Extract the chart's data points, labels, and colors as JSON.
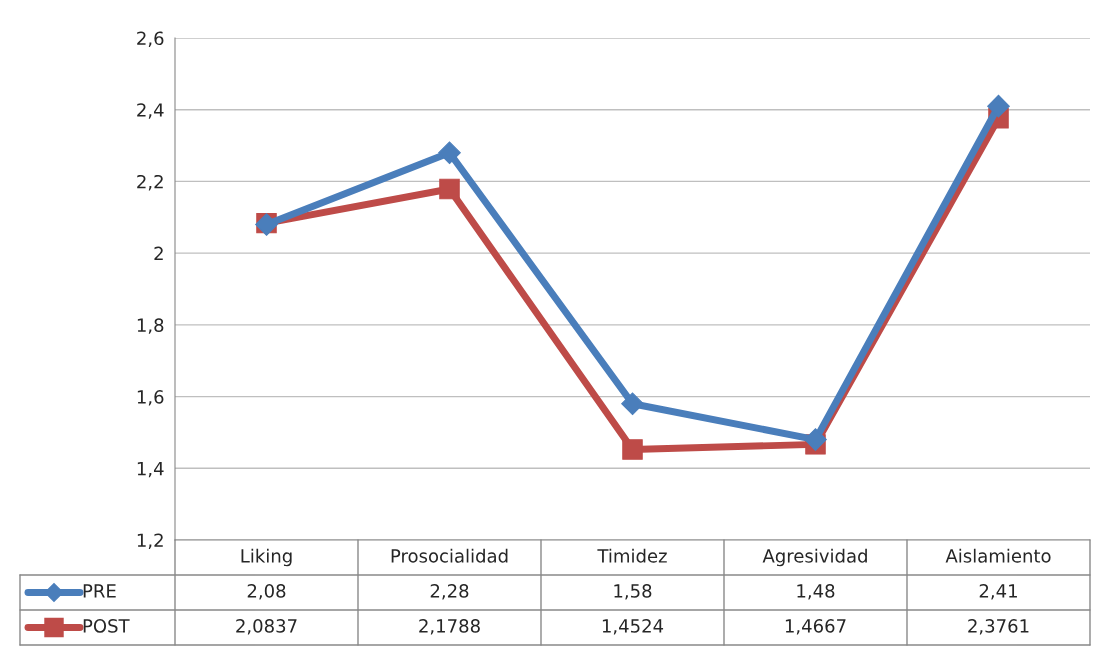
{
  "chart_data": {
    "type": "line",
    "categories": [
      "Liking",
      "Prosocialidad",
      "Timidez",
      "Agresividad",
      "Aislamiento"
    ],
    "series": [
      {
        "name": "PRE",
        "color": "#4a7ebb",
        "marker": "diamond",
        "values": [
          2.08,
          2.28,
          1.58,
          1.48,
          2.41
        ],
        "value_labels": [
          "2,08",
          "2,28",
          "1,58",
          "1,48",
          "2,41"
        ]
      },
      {
        "name": "POST",
        "color": "#be4b48",
        "marker": "square",
        "values": [
          2.0837,
          2.1788,
          1.4524,
          1.4667,
          2.3761
        ],
        "value_labels": [
          "2,0837",
          "2,1788",
          "1,4524",
          "1,4667",
          "2,3761"
        ]
      }
    ],
    "ylim": [
      1.2,
      2.6
    ],
    "yticks": [
      {
        "value": 1.2,
        "label": "1,2"
      },
      {
        "value": 1.4,
        "label": "1,4"
      },
      {
        "value": 1.6,
        "label": "1,6"
      },
      {
        "value": 1.8,
        "label": "1,8"
      },
      {
        "value": 2,
        "label": "2"
      },
      {
        "value": 2.2,
        "label": "2,2"
      },
      {
        "value": 2.4,
        "label": "2,4"
      },
      {
        "value": 2.6,
        "label": "2,6"
      }
    ],
    "grid": "y",
    "legend": "bottom"
  }
}
